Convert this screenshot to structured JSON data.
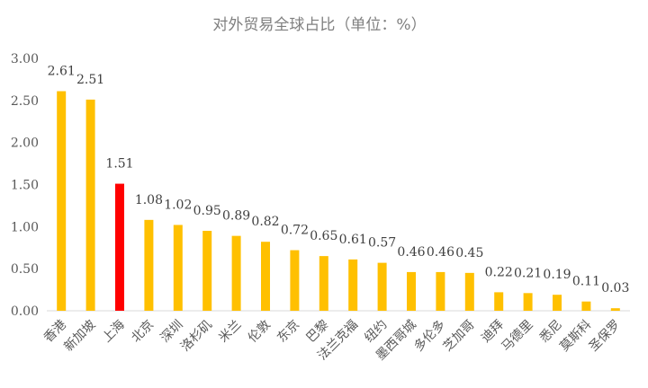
{
  "chart_data": {
    "type": "bar",
    "title": "对外贸易全球占比（单位：%）",
    "xlabel": "",
    "ylabel": "",
    "ylim": [
      0,
      3.0
    ],
    "yticks": [
      "0.00",
      "0.50",
      "1.00",
      "1.50",
      "2.00",
      "2.50",
      "3.00"
    ],
    "grid": false,
    "legend": "none",
    "categories": [
      "香港",
      "新加坡",
      "上海",
      "北京",
      "深圳",
      "洛杉矶",
      "米兰",
      "伦敦",
      "东京",
      "巴黎",
      "法兰克福",
      "纽约",
      "墨西哥城",
      "多伦多",
      "芝加哥",
      "迪拜",
      "马德里",
      "悉尼",
      "莫斯科",
      "圣保罗"
    ],
    "values": [
      2.61,
      2.51,
      1.51,
      1.08,
      1.02,
      0.95,
      0.89,
      0.82,
      0.72,
      0.65,
      0.61,
      0.57,
      0.46,
      0.46,
      0.45,
      0.22,
      0.21,
      0.19,
      0.11,
      0.03
    ],
    "value_labels": [
      "2.61",
      "2.51",
      "1.51",
      "1.08",
      "1.02",
      "0.95",
      "0.89",
      "0.82",
      "0.72",
      "0.65",
      "0.61",
      "0.57",
      "0.46",
      "0.46",
      "0.45",
      "0.22",
      "0.21",
      "0.19",
      "0.11",
      "0.03"
    ],
    "colors": {
      "default": "#FFC000",
      "highlight": "#FF0000",
      "highlight_category": "上海"
    }
  }
}
